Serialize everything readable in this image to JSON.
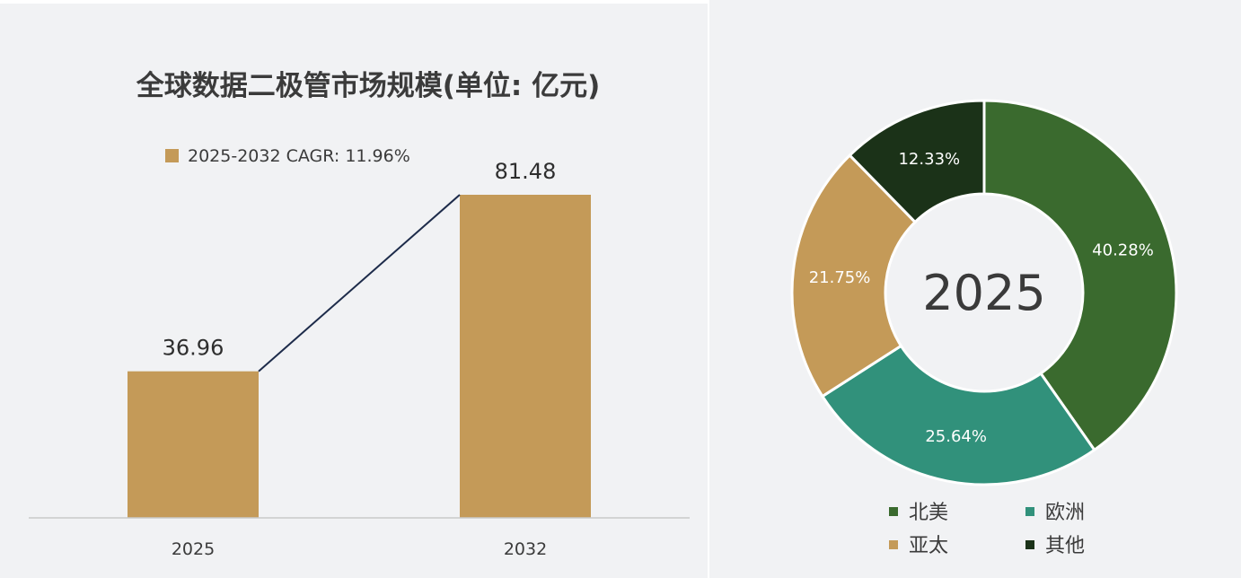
{
  "chart_data": [
    {
      "type": "bar",
      "title": "全球数据二极管市场规模(单位: 亿元)",
      "legend": {
        "label": "2025-2032 CAGR: 11.96%",
        "placement": "top-left"
      },
      "categories": [
        "2025",
        "2032"
      ],
      "values": [
        36.96,
        81.48
      ],
      "value_labels": [
        "36.96",
        "81.48"
      ],
      "ylim": [
        0,
        81.48
      ],
      "grid": false,
      "connector_line": true,
      "bar_color": "#c49a58",
      "line_color": "#1d2b4a"
    },
    {
      "type": "pie",
      "variant": "donut",
      "center_label": "2025",
      "slices": [
        {
          "label": "北美",
          "value": 40.28,
          "value_label": "40.28%",
          "color": "#3a6a2e"
        },
        {
          "label": "欧洲",
          "value": 25.64,
          "value_label": "25.64%",
          "color": "#31917b"
        },
        {
          "label": "亚太",
          "value": 21.75,
          "value_label": "21.75%",
          "color": "#c49a58"
        },
        {
          "label": "其他",
          "value": 12.33,
          "value_label": "12.33%",
          "color": "#1b3218"
        }
      ],
      "legend_placement": "bottom"
    }
  ]
}
